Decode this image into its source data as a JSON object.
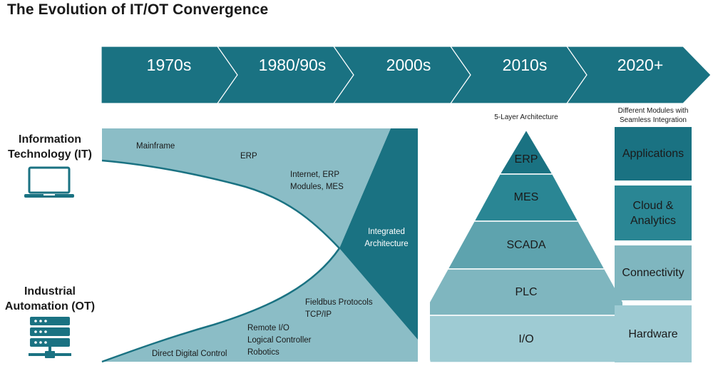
{
  "title": "The Evolution of IT/OT Convergence",
  "timeline": {
    "eras": [
      "1970s",
      "1980/90s",
      "2000s",
      "2010s",
      "2020+"
    ]
  },
  "sides": {
    "it": {
      "line1": "Information",
      "line2": "Technology (IT)",
      "icon": "laptop-icon"
    },
    "ot": {
      "line1": "Industrial",
      "line2": "Automation (OT)",
      "icon": "server-rack-icon"
    }
  },
  "it_items": {
    "mainframe": "Mainframe",
    "erp": "ERP",
    "internet_line1": "Internet, ERP",
    "internet_line2": "Modules, MES"
  },
  "ot_items": {
    "fieldbus_line1": "Fieldbus Protocols",
    "fieldbus_line2": "TCP/IP",
    "remote_line1": "Remote I/O",
    "remote_line2": "Logical Controller",
    "remote_line3": "Robotics",
    "ddc": "Direct Digital Control"
  },
  "integrated": {
    "line1": "Integrated",
    "line2": "Architecture"
  },
  "pyramid": {
    "caption": "5-Layer Architecture",
    "layers": [
      "ERP",
      "MES",
      "SCADA",
      "PLC",
      "I/O"
    ]
  },
  "modules": {
    "caption_line1": "Different Modules with",
    "caption_line2": "Seamless Integration",
    "items": [
      {
        "line1": "Applications",
        "line2": ""
      },
      {
        "line1": "Cloud &",
        "line2": "Analytics"
      },
      {
        "line1": "Connectivity",
        "line2": ""
      },
      {
        "line1": "Hardware",
        "line2": ""
      }
    ]
  },
  "colors": {
    "dark_teal": "#1a7282",
    "mid_teal": "#2a8694",
    "light_teal": "#8bbdc6",
    "lighter_teal": "#9ecbd3",
    "chevron_border": "#ffffff"
  }
}
